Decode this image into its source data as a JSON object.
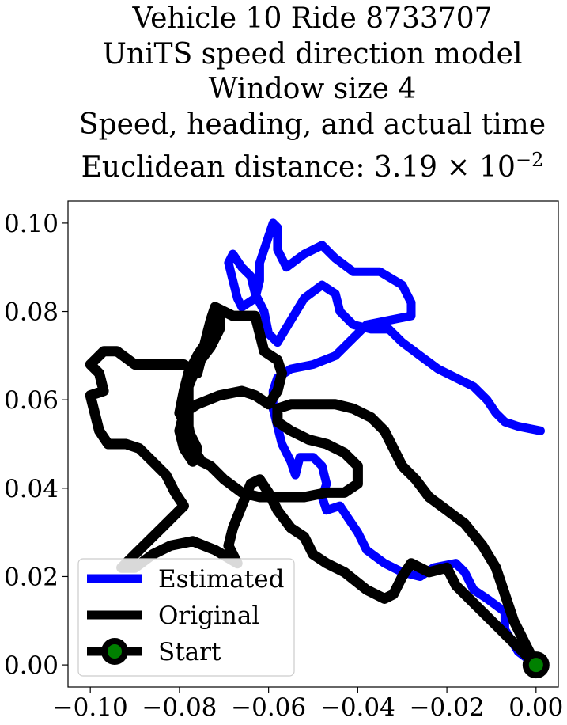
{
  "title": {
    "line1": "Vehicle 10 Ride 8733707",
    "line2": "UniTS speed direction model",
    "line3": "Window size 4",
    "line4": "Speed, heading, and actual time",
    "line5_prefix": "Euclidean distance: 3.19 × 10",
    "line5_exp": "−2"
  },
  "chart_data": {
    "type": "line",
    "xlim": [
      -0.105,
      0.005
    ],
    "ylim": [
      -0.005,
      0.105
    ],
    "x_ticks": [
      -0.1,
      -0.08,
      -0.06,
      -0.04,
      -0.02,
      0.0
    ],
    "x_tick_labels": [
      "−0.10",
      "−0.08",
      "−0.06",
      "−0.04",
      "−0.02",
      "0.00"
    ],
    "y_ticks": [
      0.0,
      0.02,
      0.04,
      0.06,
      0.08,
      0.1
    ],
    "y_tick_labels": [
      "0.00",
      "0.02",
      "0.04",
      "0.06",
      "0.08",
      "0.10"
    ],
    "grid": false,
    "legend_position": "lower-left",
    "series": [
      {
        "name": "Estimated",
        "color": "#0000ff",
        "points": [
          [
            0.0,
            0.0
          ],
          [
            -0.004,
            0.003
          ],
          [
            -0.007,
            0.008
          ],
          [
            -0.007,
            0.012
          ],
          [
            -0.011,
            0.015
          ],
          [
            -0.014,
            0.017
          ],
          [
            -0.016,
            0.021
          ],
          [
            -0.018,
            0.023
          ],
          [
            -0.023,
            0.022
          ],
          [
            -0.026,
            0.02
          ],
          [
            -0.03,
            0.021
          ],
          [
            -0.034,
            0.023
          ],
          [
            -0.038,
            0.026
          ],
          [
            -0.04,
            0.03
          ],
          [
            -0.042,
            0.033
          ],
          [
            -0.044,
            0.036
          ],
          [
            -0.047,
            0.035
          ],
          [
            -0.048,
            0.038
          ],
          [
            -0.047,
            0.041
          ],
          [
            -0.048,
            0.045
          ],
          [
            -0.05,
            0.047
          ],
          [
            -0.053,
            0.047
          ],
          [
            -0.054,
            0.043
          ],
          [
            -0.055,
            0.046
          ],
          [
            -0.057,
            0.05
          ],
          [
            -0.058,
            0.054
          ],
          [
            -0.059,
            0.058
          ],
          [
            -0.059,
            0.062
          ],
          [
            -0.058,
            0.065
          ],
          [
            -0.055,
            0.067
          ],
          [
            -0.05,
            0.068
          ],
          [
            -0.045,
            0.07
          ],
          [
            -0.041,
            0.074
          ],
          [
            -0.038,
            0.077
          ],
          [
            -0.033,
            0.078
          ],
          [
            -0.028,
            0.079
          ],
          [
            -0.028,
            0.082
          ],
          [
            -0.03,
            0.086
          ],
          [
            -0.035,
            0.089
          ],
          [
            -0.041,
            0.089
          ],
          [
            -0.045,
            0.092
          ],
          [
            -0.048,
            0.095
          ],
          [
            -0.052,
            0.093
          ],
          [
            -0.056,
            0.09
          ],
          [
            -0.058,
            0.094
          ],
          [
            -0.058,
            0.099
          ],
          [
            -0.059,
            0.1
          ],
          [
            -0.06,
            0.097
          ],
          [
            -0.061,
            0.094
          ],
          [
            -0.062,
            0.091
          ],
          [
            -0.062,
            0.087
          ],
          [
            -0.063,
            0.083
          ],
          [
            -0.066,
            0.081
          ],
          [
            -0.067,
            0.083
          ],
          [
            -0.068,
            0.087
          ],
          [
            -0.069,
            0.091
          ],
          [
            -0.068,
            0.093
          ],
          [
            -0.066,
            0.09
          ],
          [
            -0.064,
            0.088
          ],
          [
            -0.063,
            0.084
          ],
          [
            -0.061,
            0.08
          ],
          [
            -0.06,
            0.075
          ],
          [
            -0.058,
            0.073
          ],
          [
            -0.055,
            0.078
          ],
          [
            -0.052,
            0.083
          ],
          [
            -0.048,
            0.086
          ],
          [
            -0.045,
            0.084
          ],
          [
            -0.044,
            0.08
          ],
          [
            -0.041,
            0.077
          ],
          [
            -0.037,
            0.076
          ],
          [
            -0.033,
            0.076
          ],
          [
            -0.03,
            0.073
          ],
          [
            -0.026,
            0.07
          ],
          [
            -0.022,
            0.067
          ],
          [
            -0.018,
            0.065
          ],
          [
            -0.014,
            0.063
          ],
          [
            -0.011,
            0.06
          ],
          [
            -0.009,
            0.057
          ],
          [
            -0.007,
            0.055
          ],
          [
            -0.004,
            0.054
          ],
          [
            0.001,
            0.053
          ]
        ]
      },
      {
        "name": "Original",
        "color": "#000000",
        "points": [
          [
            0.0,
            0.0
          ],
          [
            -0.004,
            0.004
          ],
          [
            -0.008,
            0.008
          ],
          [
            -0.012,
            0.012
          ],
          [
            -0.015,
            0.015
          ],
          [
            -0.018,
            0.018
          ],
          [
            -0.02,
            0.022
          ],
          [
            -0.024,
            0.021
          ],
          [
            -0.028,
            0.023
          ],
          [
            -0.03,
            0.02
          ],
          [
            -0.032,
            0.016
          ],
          [
            -0.034,
            0.015
          ],
          [
            -0.038,
            0.017
          ],
          [
            -0.043,
            0.021
          ],
          [
            -0.047,
            0.023
          ],
          [
            -0.05,
            0.025
          ],
          [
            -0.052,
            0.029
          ],
          [
            -0.055,
            0.031
          ],
          [
            -0.058,
            0.035
          ],
          [
            -0.06,
            0.039
          ],
          [
            -0.062,
            0.042
          ],
          [
            -0.064,
            0.041
          ],
          [
            -0.066,
            0.036
          ],
          [
            -0.068,
            0.031
          ],
          [
            -0.069,
            0.027
          ],
          [
            -0.067,
            0.023
          ],
          [
            -0.072,
            0.026
          ],
          [
            -0.077,
            0.028
          ],
          [
            -0.082,
            0.027
          ],
          [
            -0.086,
            0.025
          ],
          [
            -0.09,
            0.022
          ],
          [
            -0.093,
            0.022
          ],
          [
            -0.09,
            0.025
          ],
          [
            -0.087,
            0.028
          ],
          [
            -0.084,
            0.031
          ],
          [
            -0.081,
            0.034
          ],
          [
            -0.079,
            0.036
          ],
          [
            -0.081,
            0.039
          ],
          [
            -0.083,
            0.043
          ],
          [
            -0.086,
            0.046
          ],
          [
            -0.089,
            0.049
          ],
          [
            -0.092,
            0.05
          ],
          [
            -0.096,
            0.05
          ],
          [
            -0.098,
            0.053
          ],
          [
            -0.099,
            0.057
          ],
          [
            -0.1,
            0.061
          ],
          [
            -0.097,
            0.062
          ],
          [
            -0.098,
            0.066
          ],
          [
            -0.1,
            0.068
          ],
          [
            -0.097,
            0.071
          ],
          [
            -0.094,
            0.071
          ],
          [
            -0.09,
            0.068
          ],
          [
            -0.084,
            0.068
          ],
          [
            -0.079,
            0.068
          ],
          [
            -0.076,
            0.066
          ],
          [
            -0.075,
            0.07
          ],
          [
            -0.074,
            0.074
          ],
          [
            -0.073,
            0.078
          ],
          [
            -0.072,
            0.081
          ],
          [
            -0.068,
            0.079
          ],
          [
            -0.063,
            0.079
          ],
          [
            -0.062,
            0.075
          ],
          [
            -0.061,
            0.071
          ],
          [
            -0.058,
            0.069
          ],
          [
            -0.057,
            0.066
          ],
          [
            -0.058,
            0.062
          ],
          [
            -0.06,
            0.059
          ],
          [
            -0.063,
            0.061
          ],
          [
            -0.066,
            0.062
          ],
          [
            -0.071,
            0.061
          ],
          [
            -0.076,
            0.059
          ],
          [
            -0.079,
            0.057
          ],
          [
            -0.08,
            0.053
          ],
          [
            -0.079,
            0.049
          ],
          [
            -0.077,
            0.046
          ],
          [
            -0.076,
            0.049
          ],
          [
            -0.078,
            0.053
          ],
          [
            -0.08,
            0.057
          ],
          [
            -0.079,
            0.062
          ],
          [
            -0.078,
            0.066
          ],
          [
            -0.076,
            0.07
          ],
          [
            -0.074,
            0.073
          ],
          [
            -0.072,
            0.077
          ],
          [
            -0.071,
            0.08
          ],
          [
            -0.071,
            0.076
          ],
          [
            -0.073,
            0.072
          ],
          [
            -0.076,
            0.068
          ],
          [
            -0.078,
            0.063
          ],
          [
            -0.078,
            0.058
          ],
          [
            -0.078,
            0.054
          ],
          [
            -0.077,
            0.049
          ],
          [
            -0.075,
            0.046
          ],
          [
            -0.073,
            0.045
          ],
          [
            -0.07,
            0.042
          ],
          [
            -0.066,
            0.039
          ],
          [
            -0.062,
            0.038
          ],
          [
            -0.057,
            0.038
          ],
          [
            -0.052,
            0.038
          ],
          [
            -0.047,
            0.039
          ],
          [
            -0.043,
            0.039
          ],
          [
            -0.04,
            0.041
          ],
          [
            -0.04,
            0.045
          ],
          [
            -0.043,
            0.048
          ],
          [
            -0.047,
            0.05
          ],
          [
            -0.051,
            0.051
          ],
          [
            -0.055,
            0.053
          ],
          [
            -0.058,
            0.055
          ],
          [
            -0.058,
            0.058
          ],
          [
            -0.055,
            0.059
          ],
          [
            -0.05,
            0.059
          ],
          [
            -0.045,
            0.059
          ],
          [
            -0.041,
            0.058
          ],
          [
            -0.037,
            0.056
          ],
          [
            -0.034,
            0.053
          ],
          [
            -0.032,
            0.049
          ],
          [
            -0.03,
            0.045
          ],
          [
            -0.027,
            0.042
          ],
          [
            -0.024,
            0.038
          ],
          [
            -0.02,
            0.035
          ],
          [
            -0.016,
            0.032
          ],
          [
            -0.012,
            0.027
          ],
          [
            -0.009,
            0.022
          ],
          [
            -0.007,
            0.016
          ],
          [
            -0.005,
            0.01
          ],
          [
            -0.002,
            0.004
          ],
          [
            0.0,
            0.0
          ]
        ]
      }
    ],
    "start": {
      "name": "Start",
      "x": 0.0,
      "y": 0.0,
      "color": "#008000",
      "edge_color": "#000000"
    }
  }
}
